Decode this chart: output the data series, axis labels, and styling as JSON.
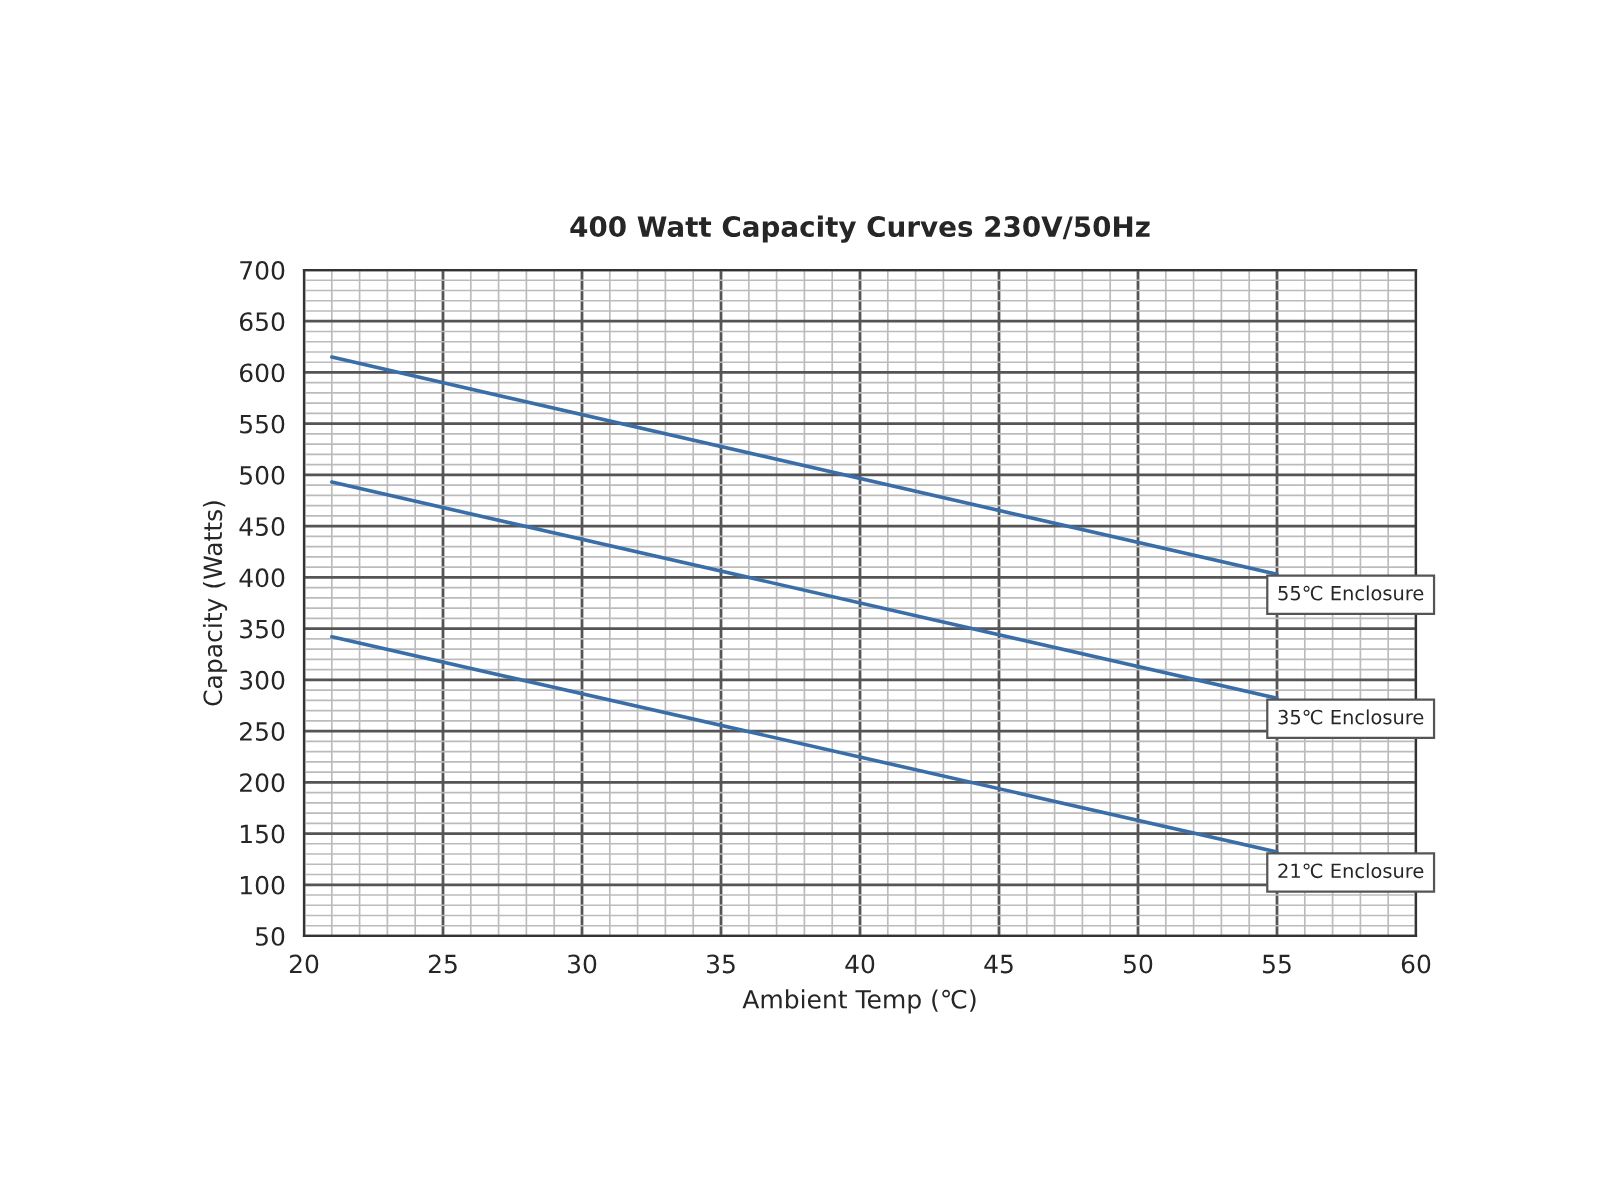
{
  "chart_data": {
    "type": "line",
    "title": "400 Watt Capacity Curves 230V/50Hz",
    "xlabel": "Ambient Temp (℃)",
    "ylabel": "Capacity (Watts)",
    "x": [
      21,
      55
    ],
    "series": [
      {
        "name": "55℃ Enclosure",
        "color": "#3a6ea8",
        "values": [
          615,
          403
        ]
      },
      {
        "name": "35℃ Enclosure",
        "color": "#3a6ea8",
        "values": [
          493,
          282
        ]
      },
      {
        "name": "21℃ Enclosure",
        "color": "#3a6ea8",
        "values": [
          342,
          132
        ]
      }
    ],
    "xlim": [
      20,
      60
    ],
    "xticks": [
      20,
      25,
      30,
      35,
      40,
      45,
      50,
      55,
      60
    ],
    "ylim": [
      50,
      700
    ],
    "yticks": [
      50,
      100,
      150,
      200,
      250,
      300,
      350,
      400,
      450,
      500,
      550,
      600,
      650,
      700
    ],
    "grid": true,
    "legend": false,
    "marker": "none",
    "line_style": "solid"
  }
}
